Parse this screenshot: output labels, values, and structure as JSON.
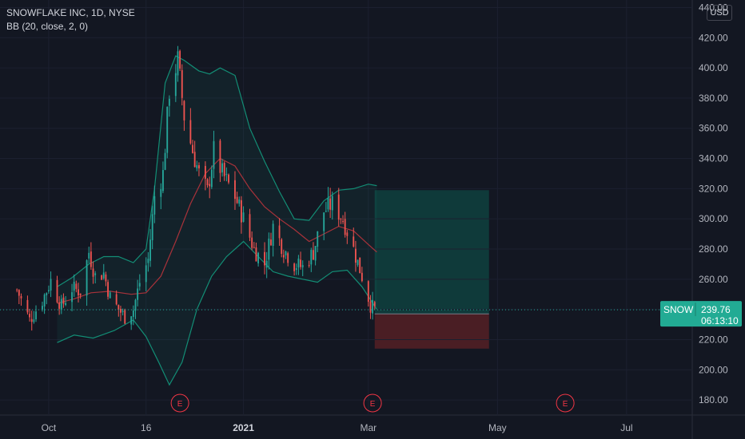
{
  "header": {
    "title": "SNOWFLAKE INC, 1D, NYSE",
    "indicator": "BB (20, close, 2, 0)"
  },
  "currency": "USD",
  "colors": {
    "background": "#131722",
    "up": "#26a69a",
    "down": "#ef5350",
    "band": "#138d75",
    "basis": "#a8323a",
    "target_zone": "#0f3a3a",
    "stop_zone": "#4a1e24",
    "price_badge": "#22ab94"
  },
  "price_badge": {
    "symbol": "SNOW",
    "price": "239.76",
    "countdown": "06:13:10"
  },
  "events": [
    {
      "label": "E",
      "date": "2020-12-02"
    },
    {
      "label": "E",
      "date": "2021-03-03"
    },
    {
      "label": "E",
      "date": "2021-06-02"
    }
  ],
  "chart_data": {
    "type": "candlestick",
    "title": "SNOWFLAKE INC, 1D, NYSE",
    "ylim": [
      170,
      445
    ],
    "xlim": [
      "2020-09-08",
      "2021-08-01"
    ],
    "y_ticks": [
      "440.00",
      "420.00",
      "400.00",
      "380.00",
      "360.00",
      "340.00",
      "320.00",
      "300.00",
      "280.00",
      "260.00",
      "240.00",
      "220.00",
      "200.00",
      "180.00"
    ],
    "x_ticks": [
      {
        "label": "Oct",
        "date": "2020-10-01"
      },
      {
        "label": "16",
        "date": "2020-11-16"
      },
      {
        "label": "2021",
        "date": "2021-01-01"
      },
      {
        "label": "Mar",
        "date": "2021-03-01"
      },
      {
        "label": "May",
        "date": "2021-05-01"
      },
      {
        "label": "Jul",
        "date": "2021-07-01"
      }
    ],
    "last_price": 239.76,
    "position": {
      "start": "2021-03-04",
      "end": "2021-04-27",
      "target": 319,
      "entry": 237,
      "stop": 214
    },
    "close_series": {
      "name": "close",
      "points": [
        [
          "2020-09-16",
          253
        ],
        [
          "2020-09-22",
          233
        ],
        [
          "2020-09-28",
          246
        ],
        [
          "2020-10-02",
          259
        ],
        [
          "2020-10-07",
          242
        ],
        [
          "2020-10-12",
          254
        ],
        [
          "2020-10-16",
          252
        ],
        [
          "2020-10-20",
          278
        ],
        [
          "2020-10-23",
          262
        ],
        [
          "2020-10-27",
          264
        ],
        [
          "2020-10-30",
          248
        ],
        [
          "2020-11-03",
          240
        ],
        [
          "2020-11-06",
          235
        ],
        [
          "2020-11-10",
          240
        ],
        [
          "2020-11-13",
          258
        ],
        [
          "2020-11-17",
          273
        ],
        [
          "2020-11-20",
          315
        ],
        [
          "2020-11-24",
          330
        ],
        [
          "2020-11-27",
          385
        ],
        [
          "2020-12-01",
          405
        ],
        [
          "2020-12-04",
          368
        ],
        [
          "2020-12-08",
          345
        ],
        [
          "2020-12-11",
          330
        ],
        [
          "2020-12-15",
          318
        ],
        [
          "2020-12-18",
          345
        ],
        [
          "2020-12-22",
          330
        ],
        [
          "2020-12-28",
          315
        ],
        [
          "2021-01-01",
          300
        ],
        [
          "2021-01-06",
          280
        ],
        [
          "2021-01-11",
          270
        ],
        [
          "2021-01-15",
          295
        ],
        [
          "2021-01-20",
          280
        ],
        [
          "2021-01-25",
          270
        ],
        [
          "2021-01-29",
          268
        ],
        [
          "2021-02-03",
          278
        ],
        [
          "2021-02-08",
          305
        ],
        [
          "2021-02-12",
          310
        ],
        [
          "2021-02-17",
          300
        ],
        [
          "2021-02-22",
          280
        ],
        [
          "2021-02-26",
          262
        ],
        [
          "2021-03-02",
          243
        ],
        [
          "2021-03-04",
          239.76
        ]
      ]
    },
    "bollinger": {
      "name": "BB (20, close, 2, 0)",
      "upper": [
        [
          "2020-10-05",
          255
        ],
        [
          "2020-10-12",
          261
        ],
        [
          "2020-10-20",
          270
        ],
        [
          "2020-10-27",
          275
        ],
        [
          "2020-11-03",
          275
        ],
        [
          "2020-11-10",
          271
        ],
        [
          "2020-11-16",
          280
        ],
        [
          "2020-11-20",
          320
        ],
        [
          "2020-11-25",
          390
        ],
        [
          "2020-11-30",
          408
        ],
        [
          "2020-12-04",
          405
        ],
        [
          "2020-12-11",
          398
        ],
        [
          "2020-12-16",
          396
        ],
        [
          "2020-12-21",
          400
        ],
        [
          "2020-12-28",
          395
        ],
        [
          "2021-01-04",
          360
        ],
        [
          "2021-01-11",
          338
        ],
        [
          "2021-01-18",
          318
        ],
        [
          "2021-01-25",
          300
        ],
        [
          "2021-02-01",
          299
        ],
        [
          "2021-02-08",
          312
        ],
        [
          "2021-02-15",
          319
        ],
        [
          "2021-02-22",
          320
        ],
        [
          "2021-03-01",
          323
        ],
        [
          "2021-03-05",
          322
        ]
      ],
      "basis": [
        [
          "2020-10-05",
          244
        ],
        [
          "2020-10-13",
          247
        ],
        [
          "2020-10-21",
          251
        ],
        [
          "2020-10-30",
          252
        ],
        [
          "2020-11-09",
          250
        ],
        [
          "2020-11-16",
          251
        ],
        [
          "2020-11-23",
          262
        ],
        [
          "2020-11-30",
          285
        ],
        [
          "2020-12-07",
          310
        ],
        [
          "2020-12-14",
          330
        ],
        [
          "2020-12-21",
          340
        ],
        [
          "2020-12-28",
          335
        ],
        [
          "2021-01-04",
          320
        ],
        [
          "2021-01-11",
          308
        ],
        [
          "2021-01-18",
          300
        ],
        [
          "2021-01-25",
          293
        ],
        [
          "2021-02-01",
          285
        ],
        [
          "2021-02-08",
          290
        ],
        [
          "2021-02-15",
          295
        ],
        [
          "2021-02-22",
          292
        ],
        [
          "2021-03-01",
          283
        ],
        [
          "2021-03-05",
          278
        ]
      ],
      "lower": [
        [
          "2020-10-05",
          218
        ],
        [
          "2020-10-13",
          223
        ],
        [
          "2020-10-22",
          221
        ],
        [
          "2020-11-01",
          226
        ],
        [
          "2020-11-10",
          233
        ],
        [
          "2020-11-16",
          222
        ],
        [
          "2020-11-22",
          205
        ],
        [
          "2020-11-27",
          190
        ],
        [
          "2020-12-03",
          205
        ],
        [
          "2020-12-10",
          240
        ],
        [
          "2020-12-17",
          262
        ],
        [
          "2020-12-24",
          275
        ],
        [
          "2021-01-01",
          285
        ],
        [
          "2021-01-08",
          275
        ],
        [
          "2021-01-15",
          265
        ],
        [
          "2021-01-22",
          262
        ],
        [
          "2021-01-29",
          260
        ],
        [
          "2021-02-05",
          258
        ],
        [
          "2021-02-12",
          265
        ],
        [
          "2021-02-19",
          266
        ],
        [
          "2021-02-26",
          255
        ],
        [
          "2021-03-05",
          240
        ]
      ]
    }
  }
}
